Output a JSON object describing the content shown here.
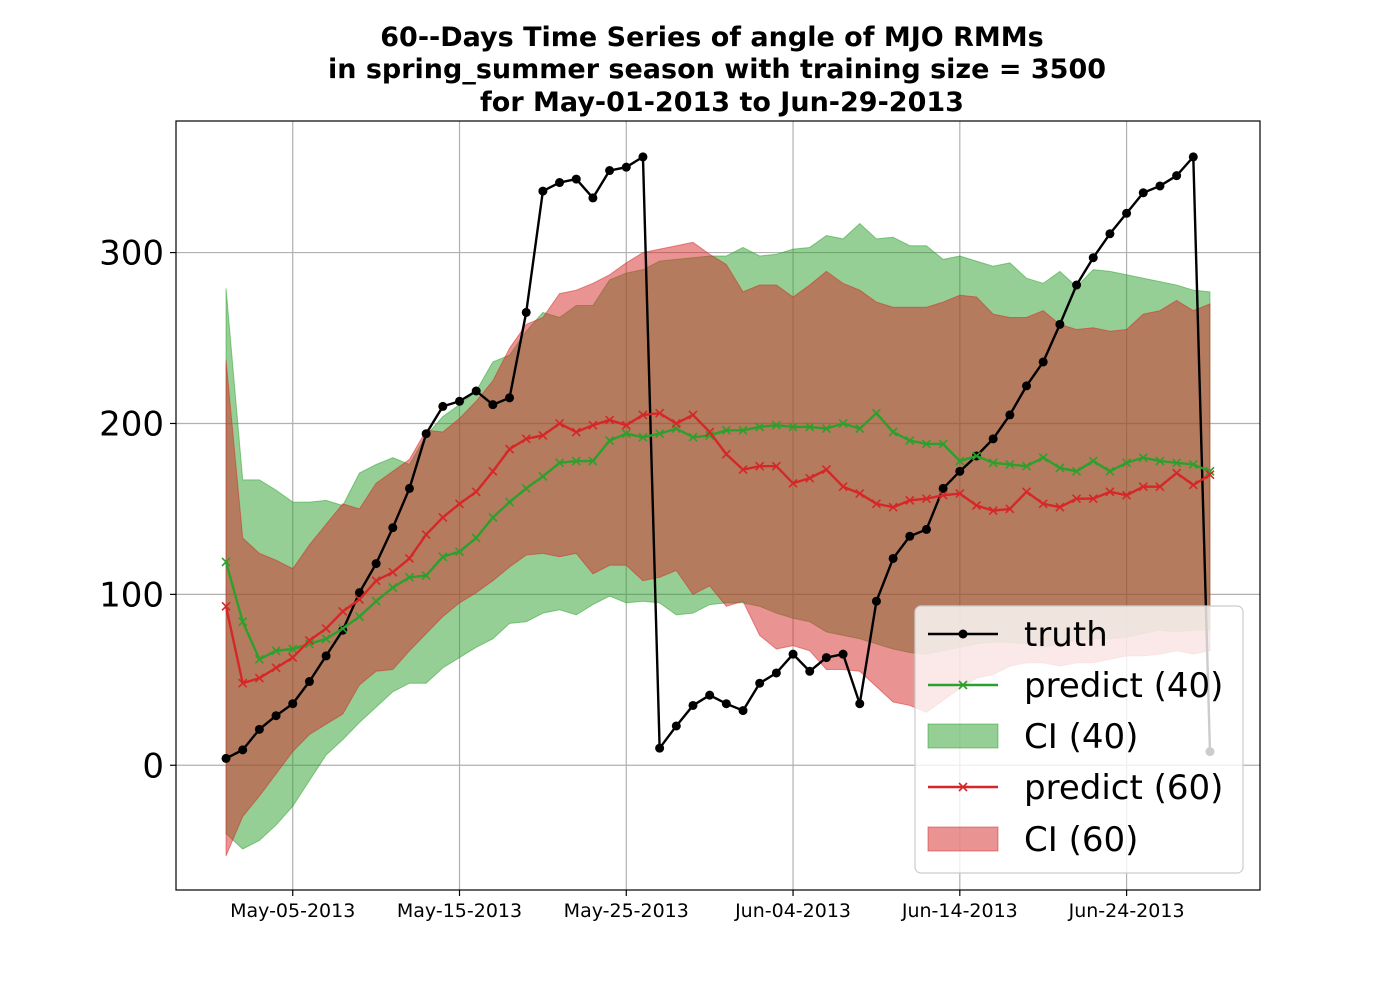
{
  "chart_data": {
    "type": "line",
    "title_lines": [
      "60--Days Time Series of angle of MJO RMMs",
      "in spring_summer season with training size = 3500",
      "for May-01-2013 to Jun-29-2013"
    ],
    "xlabel": "",
    "ylabel": "",
    "x_start": "2013-05-01",
    "x_count": 60,
    "xlim": [
      "2013-04-28",
      "2013-07-02"
    ],
    "ylim": [
      -73,
      377
    ],
    "xticks": [
      "2013-05-05",
      "2013-05-15",
      "2013-05-25",
      "2013-06-04",
      "2013-06-14",
      "2013-06-24"
    ],
    "xtick_labels": [
      "May-05-2013",
      "May-15-2013",
      "May-25-2013",
      "Jun-04-2013",
      "Jun-14-2013",
      "Jun-24-2013"
    ],
    "yticks": [
      0,
      100,
      200,
      300
    ],
    "ytick_labels": [
      "0",
      "100",
      "200",
      "300"
    ],
    "grid": true,
    "legend_position": "lower-right",
    "colors": {
      "truth": "#000000",
      "predict40": "#2ca02c",
      "ci40": "#2ca02c",
      "predict60": "#d62728",
      "ci60": "#d62728"
    },
    "series": [
      {
        "key": "truth",
        "name": "truth",
        "marker": "dot",
        "values": [
          4,
          9,
          21,
          29,
          36,
          49,
          64,
          79,
          101,
          118,
          139,
          162,
          194,
          210,
          213,
          219,
          211,
          215,
          265,
          336,
          341,
          343,
          332,
          348,
          350,
          356,
          10,
          23,
          35,
          41,
          36,
          32,
          48,
          54,
          65,
          55,
          63,
          65,
          36,
          96,
          121,
          134,
          138,
          162,
          172,
          181,
          191,
          205,
          222,
          236,
          258,
          281,
          297,
          311,
          323,
          335,
          339,
          345,
          356,
          8
        ]
      },
      {
        "key": "predict40",
        "name": "predict (40)",
        "marker": "x",
        "values": [
          119,
          84,
          62,
          67,
          68,
          71,
          74,
          80,
          87,
          96,
          104,
          110,
          111,
          122,
          125,
          133,
          145,
          154,
          162,
          169,
          177,
          178,
          178,
          190,
          194,
          192,
          194,
          197,
          192,
          193,
          196,
          196,
          198,
          199,
          198,
          198,
          197,
          200,
          197,
          206,
          195,
          190,
          188,
          188,
          178,
          181,
          177,
          176,
          175,
          180,
          174,
          172,
          178,
          172,
          177,
          180,
          178,
          177,
          176,
          172
        ]
      },
      {
        "key": "predict60",
        "name": "predict (60)",
        "marker": "x",
        "values": [
          93,
          48,
          51,
          57,
          63,
          73,
          80,
          90,
          97,
          108,
          113,
          121,
          135,
          145,
          153,
          160,
          172,
          185,
          191,
          193,
          200,
          195,
          199,
          202,
          199,
          205,
          206,
          200,
          205,
          195,
          182,
          173,
          175,
          175,
          165,
          168,
          173,
          163,
          159,
          153,
          151,
          155,
          156,
          158,
          159,
          152,
          149,
          150,
          160,
          153,
          151,
          156,
          156,
          160,
          158,
          163,
          163,
          171,
          164,
          170
        ]
      },
      {
        "key": "ci40",
        "name": "CI (40)",
        "type": "band",
        "lower": [
          -40,
          -49,
          -44,
          -35,
          -24,
          -9,
          6,
          15,
          25,
          34,
          43,
          48,
          48,
          57,
          63,
          69,
          74,
          83,
          84,
          89,
          91,
          88,
          94,
          99,
          95,
          96,
          95,
          88,
          89,
          94,
          95,
          95,
          93,
          89,
          86,
          84,
          78,
          76,
          74,
          71,
          68,
          66,
          65,
          67,
          69,
          71,
          72,
          72,
          71,
          69,
          71,
          73,
          74,
          74,
          75,
          77,
          79,
          78,
          79,
          79
        ],
        "upper": [
          279,
          167,
          167,
          161,
          154,
          154,
          155,
          152,
          171,
          176,
          180,
          176,
          193,
          204,
          211,
          219,
          236,
          240,
          254,
          265,
          262,
          269,
          269,
          284,
          288,
          290,
          295,
          296,
          297,
          298,
          298,
          303,
          298,
          299,
          302,
          303,
          310,
          308,
          317,
          308,
          309,
          304,
          304,
          296,
          298,
          295,
          292,
          294,
          285,
          282,
          289,
          280,
          290,
          289,
          287,
          285,
          283,
          281,
          278,
          277
        ]
      },
      {
        "key": "ci60",
        "name": "CI (60)",
        "type": "band",
        "lower": [
          -53,
          -30,
          -18,
          -5,
          8,
          18,
          24,
          30,
          47,
          55,
          56,
          67,
          77,
          87,
          95,
          101,
          108,
          116,
          123,
          124,
          122,
          124,
          112,
          117,
          117,
          108,
          110,
          114,
          100,
          105,
          93,
          96,
          76,
          68,
          70,
          67,
          56,
          56,
          55,
          46,
          37,
          35,
          31,
          38,
          45,
          51,
          53,
          58,
          60,
          60,
          58,
          60,
          60,
          62,
          64,
          64,
          65,
          67,
          65,
          67
        ],
        "upper": [
          237,
          133,
          124,
          120,
          115,
          129,
          141,
          153,
          150,
          165,
          172,
          179,
          196,
          195,
          203,
          213,
          225,
          244,
          258,
          262,
          276,
          278,
          282,
          287,
          294,
          300,
          302,
          304,
          306,
          299,
          293,
          277,
          281,
          281,
          274,
          281,
          289,
          282,
          278,
          271,
          268,
          268,
          268,
          271,
          275,
          274,
          264,
          262,
          262,
          266,
          258,
          255,
          256,
          254,
          255,
          264,
          266,
          272,
          266,
          270
        ]
      }
    ]
  }
}
